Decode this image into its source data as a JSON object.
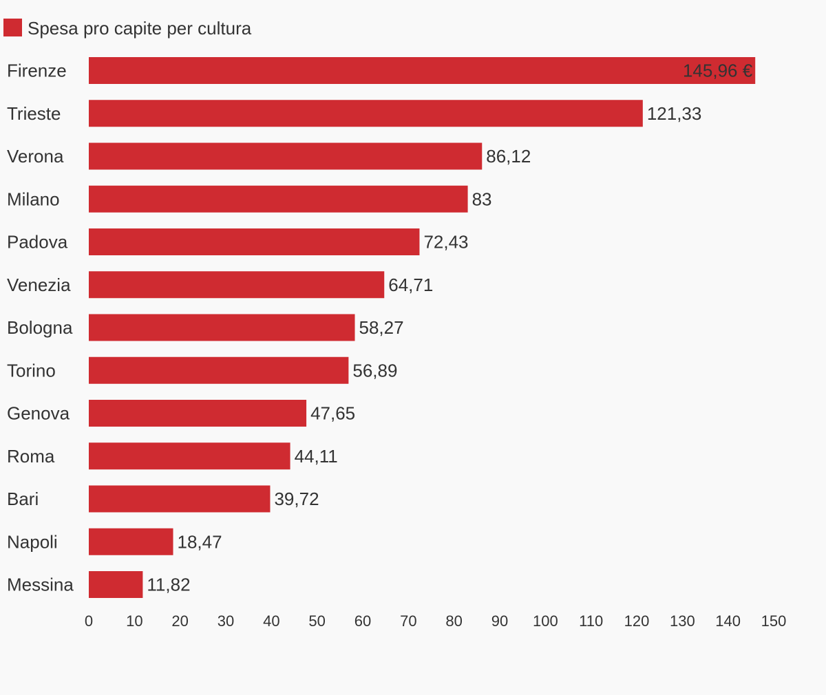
{
  "chart_data": {
    "type": "bar",
    "orientation": "horizontal",
    "title": "",
    "xlabel": "",
    "ylabel": "",
    "grid": false,
    "legend_position": "top-left",
    "colors": {
      "bar": "#cf2b31",
      "text": "#333333",
      "background": "#f9f9f9"
    },
    "series": [
      {
        "name": "Spesa pro capite per cultura",
        "values": [
          145.96,
          121.33,
          86.12,
          83,
          72.43,
          64.71,
          58.27,
          56.89,
          47.65,
          44.11,
          39.72,
          18.47,
          11.82
        ]
      }
    ],
    "categories": [
      "Firenze",
      "Trieste",
      "Verona",
      "Milano",
      "Padova",
      "Venezia",
      "Bologna",
      "Torino",
      "Genova",
      "Roma",
      "Bari",
      "Napoli",
      "Messina"
    ],
    "value_labels": [
      "145,96 €",
      "121,33",
      "86,12",
      "83",
      "72,43",
      "64,71",
      "58,27",
      "56,89",
      "47,65",
      "44,11",
      "39,72",
      "18,47",
      "11,82"
    ],
    "xlim": [
      0,
      150
    ],
    "xticks": [
      0,
      10,
      20,
      30,
      40,
      50,
      60,
      70,
      80,
      90,
      100,
      110,
      120,
      130,
      140,
      150
    ]
  }
}
